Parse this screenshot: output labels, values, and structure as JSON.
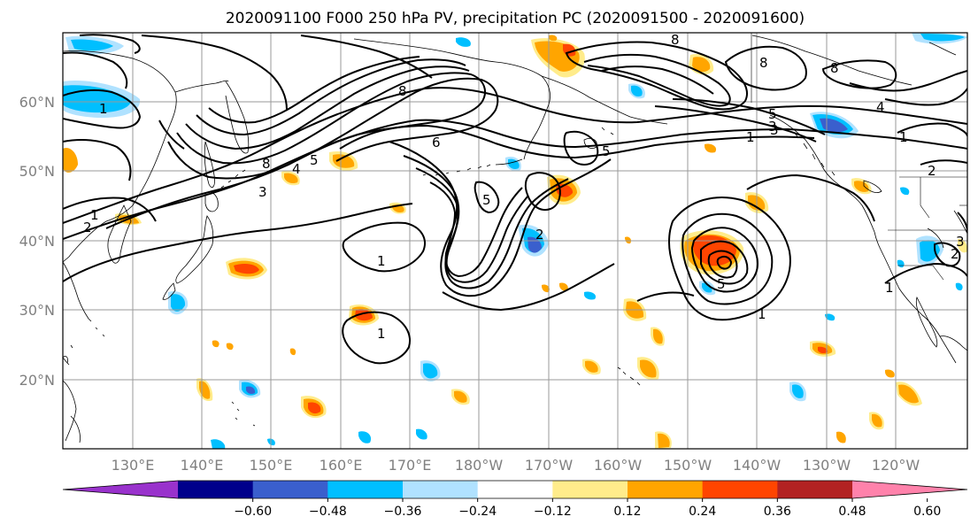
{
  "title": "2020091100 F000 250 hPa PV, precipitation PC (2020091500 - 2020091600)",
  "lat_labels": [
    "60°N",
    "50°N",
    "40°N",
    "30°N",
    "20°N"
  ],
  "lon_labels": [
    "130°E",
    "140°E",
    "150°E",
    "160°E",
    "170°E",
    "180°W",
    "170°W",
    "160°W",
    "150°W",
    "140°W",
    "130°W",
    "120°W"
  ],
  "colorbar": {
    "colors": [
      "#9932cc",
      "#00008b",
      "#3a5fcd",
      "#00bfff",
      "#b0e2ff",
      "#ffffff",
      "#ffec8b",
      "#ffa500",
      "#ff4500",
      "#b22222",
      "#ff82ab"
    ],
    "tick_labels": [
      "−0.60",
      "−0.48",
      "−0.36",
      "−0.24",
      "−0.12",
      "0.12",
      "0.24",
      "0.36",
      "0.48",
      "0.60"
    ]
  },
  "contour_labels": [
    "1",
    "2",
    "8",
    "6",
    "8",
    "3",
    "4",
    "5",
    "8",
    "1",
    "3",
    "5",
    "5",
    "2",
    "5",
    "1",
    "1",
    "8",
    "8",
    "4",
    "1",
    "2",
    "1",
    "2",
    "3",
    "1",
    "3",
    "5",
    "1"
  ]
}
